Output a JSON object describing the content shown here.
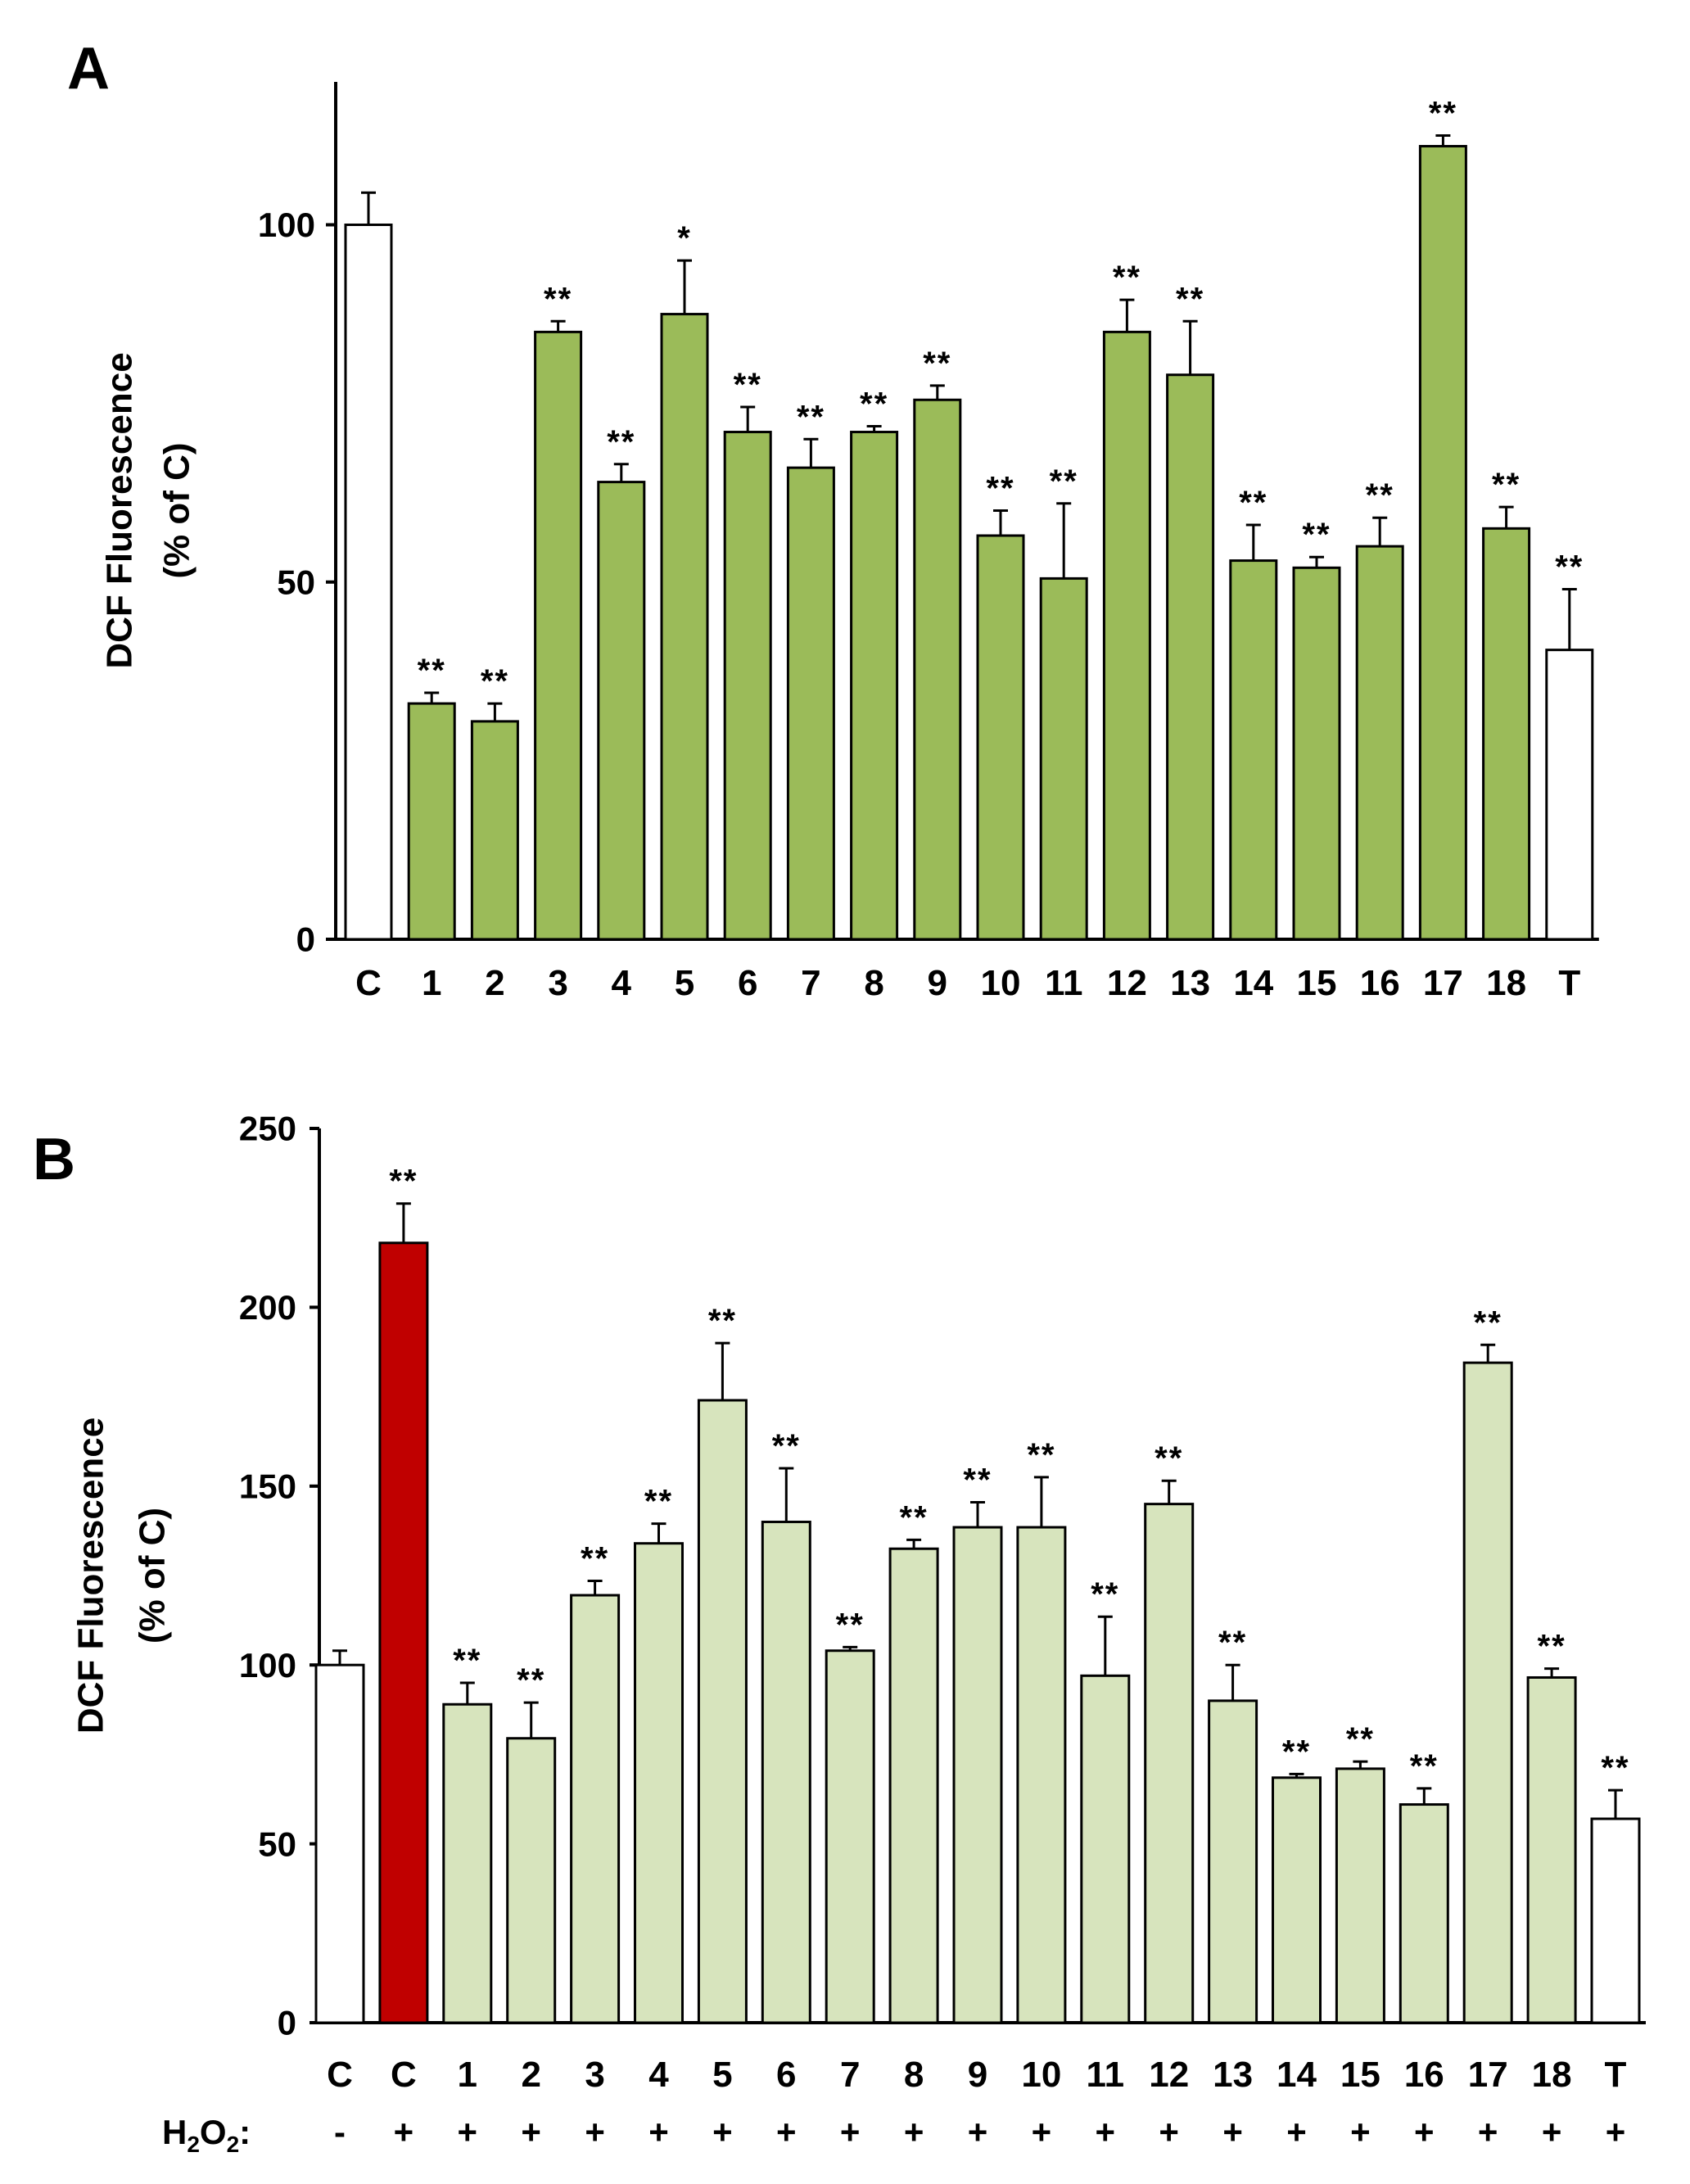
{
  "chart_data": [
    {
      "panel": "A",
      "type": "bar",
      "ylabel_line1": "DCF Fluorescence",
      "ylabel_line2": "(% of C)",
      "ylim": [
        0,
        120
      ],
      "yticks": [
        0,
        50,
        100
      ],
      "categories": [
        "C",
        "1",
        "2",
        "3",
        "4",
        "5",
        "6",
        "7",
        "8",
        "9",
        "10",
        "11",
        "12",
        "13",
        "14",
        "15",
        "16",
        "17",
        "18",
        "T"
      ],
      "values": [
        100,
        33,
        30.5,
        85,
        64,
        87.5,
        71,
        66,
        71,
        75.5,
        56.5,
        50.5,
        85,
        79,
        53,
        52,
        55,
        111,
        57.5,
        40.5
      ],
      "errors": [
        4.5,
        1.5,
        2.5,
        1.5,
        2.5,
        7.5,
        3.5,
        4,
        0.8,
        2,
        3.5,
        10.5,
        4.5,
        7.5,
        5,
        1.5,
        4,
        1.5,
        3,
        8.5
      ],
      "significance": [
        "",
        "**",
        "**",
        "**",
        "**",
        "*",
        "**",
        "**",
        "**",
        "**",
        "**",
        "**",
        "**",
        "**",
        "**",
        "**",
        "**",
        "**",
        "**",
        "**"
      ],
      "bar_colors": [
        "#ffffff",
        "#9bbb59",
        "#9bbb59",
        "#9bbb59",
        "#9bbb59",
        "#9bbb59",
        "#9bbb59",
        "#9bbb59",
        "#9bbb59",
        "#9bbb59",
        "#9bbb59",
        "#9bbb59",
        "#9bbb59",
        "#9bbb59",
        "#9bbb59",
        "#9bbb59",
        "#9bbb59",
        "#9bbb59",
        "#9bbb59",
        "#ffffff"
      ]
    },
    {
      "panel": "B",
      "type": "bar",
      "ylabel_line1": "DCF Fluorescence",
      "ylabel_line2": "(% of C)",
      "ylim": [
        0,
        250
      ],
      "yticks": [
        0,
        50,
        100,
        150,
        200,
        250
      ],
      "categories": [
        "C",
        "C",
        "1",
        "2",
        "3",
        "4",
        "5",
        "6",
        "7",
        "8",
        "9",
        "10",
        "11",
        "12",
        "13",
        "14",
        "15",
        "16",
        "17",
        "18",
        "T"
      ],
      "values": [
        100,
        218,
        89,
        79.5,
        119.5,
        134,
        174,
        140,
        104,
        132.5,
        138.5,
        138.5,
        97,
        145,
        90,
        68.5,
        71,
        61,
        184.5,
        96.5,
        57
      ],
      "errors": [
        4,
        11,
        6,
        10,
        4,
        5.5,
        16,
        15,
        1,
        2.5,
        7,
        14,
        16.5,
        6.5,
        10,
        1,
        2,
        4.5,
        5,
        2.5,
        8
      ],
      "significance": [
        "",
        "**",
        "**",
        "**",
        "**",
        "**",
        "**",
        "**",
        "**",
        "**",
        "**",
        "**",
        "**",
        "**",
        "**",
        "**",
        "**",
        "**",
        "**",
        "**",
        "**"
      ],
      "bar_colors": [
        "#ffffff",
        "#c00000",
        "#d7e4bd",
        "#d7e4bd",
        "#d7e4bd",
        "#d7e4bd",
        "#d7e4bd",
        "#d7e4bd",
        "#d7e4bd",
        "#d7e4bd",
        "#d7e4bd",
        "#d7e4bd",
        "#d7e4bd",
        "#d7e4bd",
        "#d7e4bd",
        "#d7e4bd",
        "#d7e4bd",
        "#d7e4bd",
        "#d7e4bd",
        "#d7e4bd",
        "#ffffff"
      ],
      "treatment_label": "H",
      "treatment_sub": "2",
      "treatment_label_mid": "O",
      "treatment_sub2": "2",
      "treatment_colon": ":",
      "treatment": [
        "-",
        "+",
        "+",
        "+",
        "+",
        "+",
        "+",
        "+",
        "+",
        "+",
        "+",
        "+",
        "+",
        "+",
        "+",
        "+",
        "+",
        "+",
        "+",
        "+",
        "+"
      ]
    }
  ]
}
